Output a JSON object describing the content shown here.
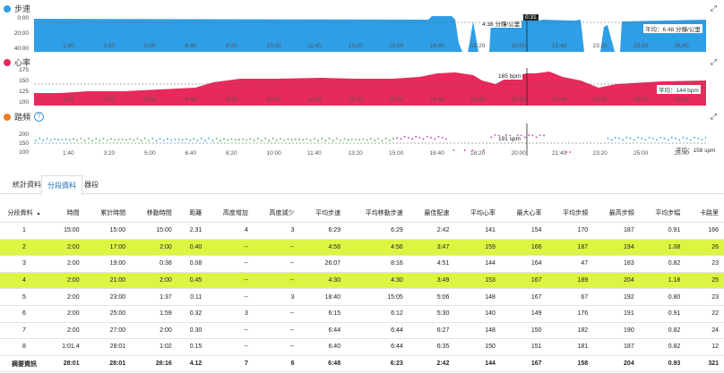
{
  "charts": {
    "pace": {
      "title": "步速",
      "color": "#2e9ee6",
      "y_ticks": [
        "0:00",
        "20:00",
        "40:00"
      ],
      "avg_label": "平均：6:48 分鐘/公里",
      "tooltip": "4:38 分鐘/公里",
      "cursor_time": "0:31",
      "x_ticks": [
        "1:40",
        "3:20",
        "5:00",
        "6:40",
        "8:20",
        "10:00",
        "11:40",
        "13:20",
        "15:00",
        "16:40",
        "18:20",
        "20:00",
        "21:40",
        "23:20",
        "25:00",
        "26:40"
      ]
    },
    "hr": {
      "title": "心率",
      "color": "#e8295b",
      "y_ticks": [
        "175",
        "150",
        "125",
        "100"
      ],
      "avg_label": "平均：144 bpm",
      "tooltip": "165 bpm",
      "x_ticks": [
        "1:40",
        "3:20",
        "5:00",
        "6:40",
        "8:20",
        "10:00",
        "11:40",
        "13:20",
        "15:00",
        "16:40",
        "18:20",
        "20:00",
        "21:40",
        "23:20",
        "25:00",
        "26:40"
      ]
    },
    "cadence": {
      "title": "踏頻",
      "help_icon": "question-icon",
      "color": "#ee7d22",
      "y_ticks": [
        "200",
        "150",
        "100"
      ],
      "avg_label": "平均：158 spm",
      "tooltip": "191 spm",
      "x_ticks": [
        "1:40",
        "3:20",
        "5:00",
        "6:40",
        "8:20",
        "10:00",
        "11:40",
        "13:20",
        "15:00",
        "16:40",
        "18:20",
        "20:00",
        "21:40",
        "23:20",
        "25:00",
        "26:40"
      ]
    }
  },
  "tabs": [
    "統計資料",
    "分段資料",
    "器段"
  ],
  "active_tab": 1,
  "table": {
    "headers": [
      "分段資料",
      "時間",
      "累計時間",
      "移動時間",
      "距離",
      "高度增加",
      "高度減少",
      "平均步速",
      "平均移動步速",
      "最佳配速",
      "平均心率",
      "最大心率",
      "平均步頻",
      "最高步頻",
      "平均步幅",
      "卡路里"
    ],
    "sort_icon": "▲",
    "rows": [
      {
        "cells": [
          "1",
          "15:00",
          "15:00",
          "15:00",
          "2.31",
          "4",
          "3",
          "6:29",
          "6:29",
          "2:42",
          "141",
          "154",
          "170",
          "187",
          "0.91",
          "166"
        ],
        "hl": false
      },
      {
        "cells": [
          "2",
          "2:00",
          "17:00",
          "2:00",
          "0.40",
          "--",
          "--",
          "4:56",
          "4:56",
          "3:47",
          "159",
          "166",
          "187",
          "194",
          "1.08",
          "26"
        ],
        "hl": true
      },
      {
        "cells": [
          "3",
          "2:00",
          "19:00",
          "0:38",
          "0.08",
          "--",
          "--",
          "26:07",
          "8:16",
          "4:51",
          "144",
          "164",
          "47",
          "183",
          "0.82",
          "23"
        ],
        "hl": false
      },
      {
        "cells": [
          "4",
          "2:00",
          "21:00",
          "2:00",
          "0.45",
          "--",
          "--",
          "4:30",
          "4:30",
          "3:49",
          "153",
          "167",
          "189",
          "204",
          "1.18",
          "25"
        ],
        "hl": true
      },
      {
        "cells": [
          "5",
          "2:00",
          "23:00",
          "1:37",
          "0.11",
          "--",
          "3",
          "18:40",
          "15:05",
          "5:06",
          "148",
          "167",
          "67",
          "192",
          "0.80",
          "23"
        ],
        "hl": false
      },
      {
        "cells": [
          "6",
          "2:00",
          "25:00",
          "1:59",
          "0.32",
          "3",
          "--",
          "6:15",
          "6:12",
          "5:30",
          "140",
          "149",
          "176",
          "191",
          "0.91",
          "22"
        ],
        "hl": false
      },
      {
        "cells": [
          "7",
          "2:00",
          "27:00",
          "2:00",
          "0.30",
          "--",
          "--",
          "6:44",
          "6:44",
          "6:27",
          "148",
          "150",
          "182",
          "190",
          "0.82",
          "24"
        ],
        "hl": false
      },
      {
        "cells": [
          "8",
          "1:01.4",
          "28:01",
          "1:02",
          "0.15",
          "--",
          "--",
          "6:40",
          "6:44",
          "6:35",
          "150",
          "151",
          "181",
          "187",
          "0.82",
          "12"
        ],
        "hl": false
      }
    ],
    "summary": [
      "摘要資訊",
      "28:01",
      "28:01",
      "26:16",
      "4.12",
      "7",
      "6",
      "6:48",
      "6:23",
      "2:42",
      "144",
      "167",
      "158",
      "204",
      "0.93",
      "321"
    ]
  }
}
